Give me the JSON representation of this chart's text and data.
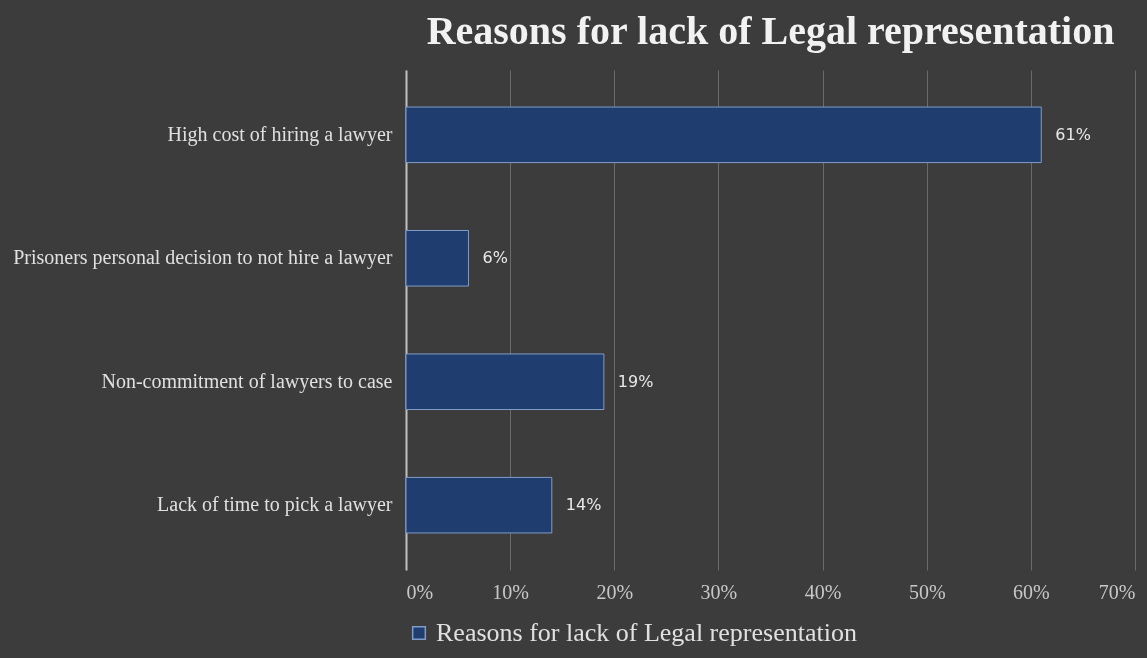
{
  "chart_data": {
    "type": "bar",
    "orientation": "horizontal",
    "title": "Reasons for lack of Legal representation",
    "categories": [
      "High cost of hiring a lawyer",
      "Prisoners personal decision to not hire a lawyer",
      "Non-commitment of lawyers to case",
      "Lack of time to pick a lawyer"
    ],
    "series": [
      {
        "name": "Reasons for lack of Legal representation",
        "color": "#1f3d6e",
        "values": [
          61,
          6,
          19,
          14
        ],
        "value_labels": [
          "61%",
          "6%",
          "19%",
          "14%"
        ]
      }
    ],
    "xlim": [
      0,
      70
    ],
    "xticks": [
      {
        "value": 0,
        "label": "0%"
      },
      {
        "value": 10,
        "label": "10%"
      },
      {
        "value": 20,
        "label": "20%"
      },
      {
        "value": 30,
        "label": "30%"
      },
      {
        "value": 40,
        "label": "40%"
      },
      {
        "value": 50,
        "label": "50%"
      },
      {
        "value": 60,
        "label": "60%"
      },
      {
        "value": 70,
        "label": "70%"
      }
    ],
    "grid": "x",
    "legend": "bottom"
  }
}
